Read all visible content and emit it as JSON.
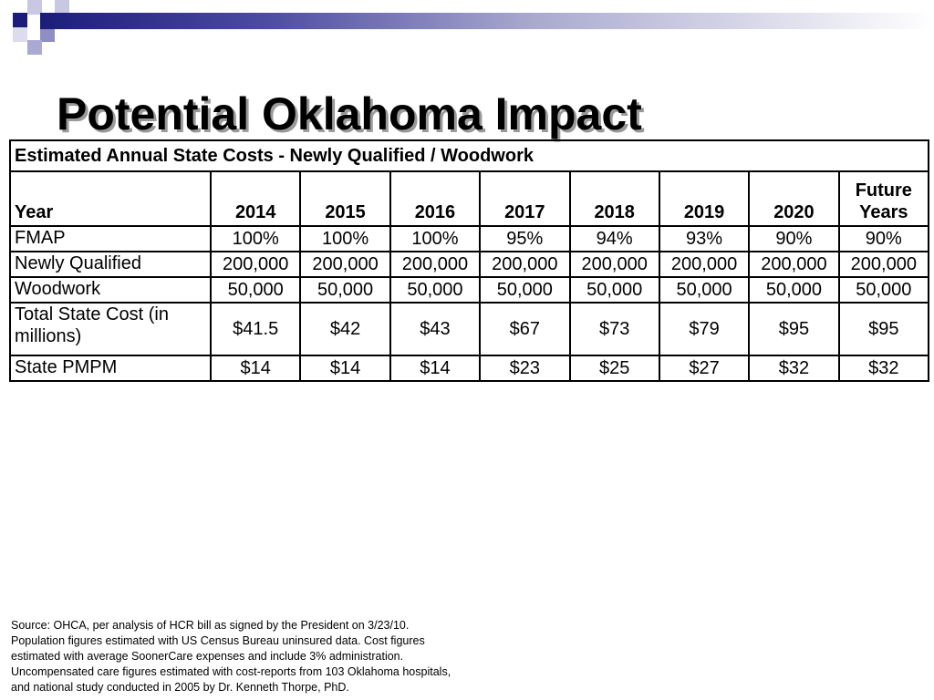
{
  "title": "Potential Oklahoma Impact",
  "table": {
    "caption": "Estimated Annual State Costs - Newly Qualified / Woodwork",
    "header": {
      "first": "Year",
      "years": [
        "2014",
        "2015",
        "2016",
        "2017",
        "2018",
        "2019",
        "2020"
      ],
      "future_line1": "Future",
      "future_line2": "Years"
    },
    "rows": [
      {
        "label": "FMAP",
        "values": [
          "100%",
          "100%",
          "100%",
          "95%",
          "94%",
          "93%",
          "90%",
          "90%"
        ]
      },
      {
        "label": "Newly Qualified",
        "values": [
          "200,000",
          "200,000",
          "200,000",
          "200,000",
          "200,000",
          "200,000",
          "200,000",
          "200,000"
        ]
      },
      {
        "label": "Woodwork",
        "values": [
          "50,000",
          "50,000",
          "50,000",
          "50,000",
          "50,000",
          "50,000",
          "50,000",
          "50,000"
        ]
      },
      {
        "label": "Total State Cost (in millions)",
        "values": [
          "$41.5",
          "$42",
          "$43",
          "$67",
          "$73",
          "$79",
          "$95",
          "$95"
        ]
      },
      {
        "label": "State PMPM",
        "values": [
          "$14",
          "$14",
          "$14",
          "$23",
          "$25",
          "$27",
          "$32",
          "$32"
        ]
      }
    ]
  },
  "source_lines": [
    "Source:  OHCA, per analysis of HCR bill as signed by the President on 3/23/10.",
    "Population figures estimated with US Census Bureau uninsured data.  Cost figures",
    "estimated with average SoonerCare expenses and include 3% administration.",
    "Uncompensated care figures estimated with cost-reports from 103 Oklahoma hospitals,",
    "and national study conducted in 2005 by Dr. Kenneth Thorpe, PhD."
  ],
  "colors": {
    "accent_dark": "#1c1c7a",
    "accent_light": "#a9a9cf"
  }
}
